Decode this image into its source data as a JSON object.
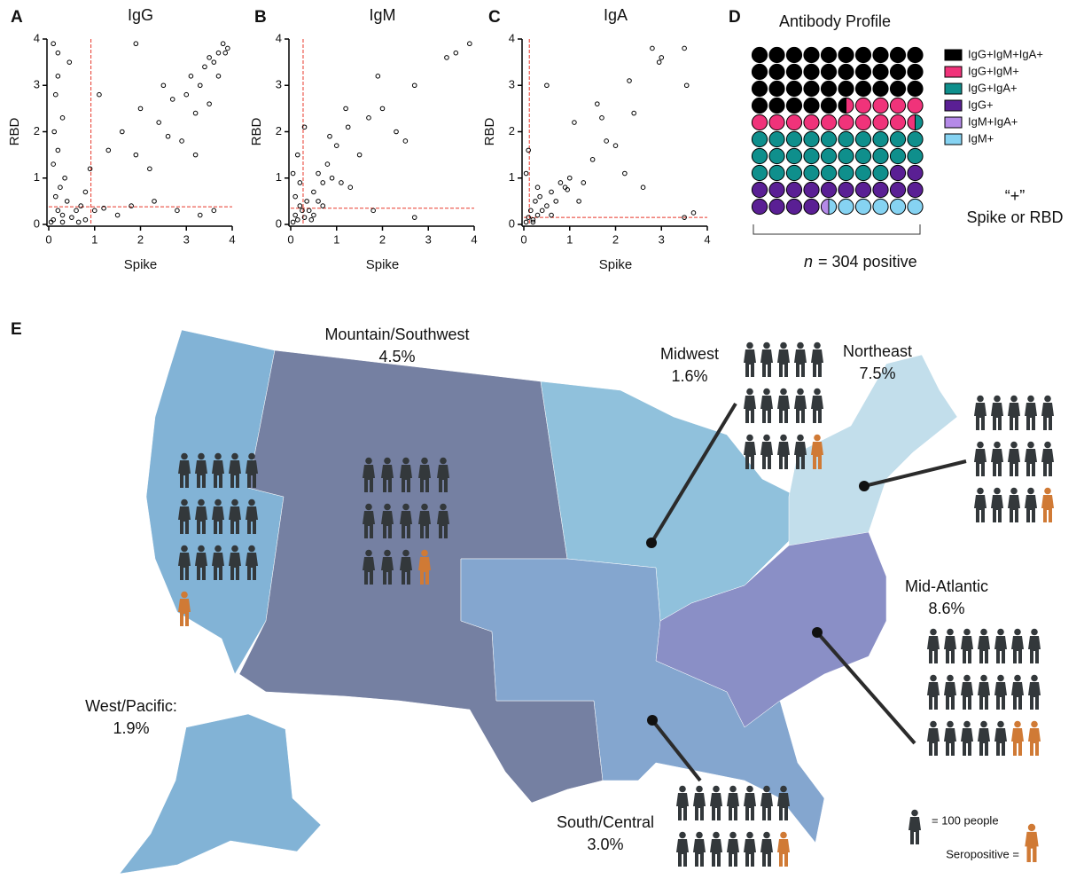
{
  "chart_data": [
    {
      "type": "scatter",
      "panel_label": "A",
      "title": "IgG",
      "x_label": "Spike",
      "y_label": "RBD",
      "x": [
        0.1,
        0.2,
        0.3,
        0.4,
        0.5,
        0.15,
        0.25,
        0.6,
        0.7,
        0.35,
        0.1,
        0.2,
        0.12,
        0.3,
        0.15,
        0.2,
        0.1,
        0.2,
        0.45,
        0.8,
        0.9,
        1.0,
        1.2,
        1.5,
        1.8,
        2.3,
        2.8,
        3.3,
        3.6,
        1.1,
        1.3,
        1.6,
        1.9,
        2.0,
        2.2,
        2.4,
        2.5,
        2.7,
        2.9,
        3.0,
        3.1,
        3.2,
        3.3,
        3.4,
        3.5,
        3.6,
        3.7,
        3.8,
        3.9,
        3.85,
        3.7,
        3.5,
        3.2,
        2.6,
        1.9,
        0.65,
        0.05,
        0.3,
        0.8
      ],
      "values": [
        0.1,
        0.3,
        0.2,
        0.5,
        0.15,
        0.6,
        0.8,
        0.3,
        0.4,
        1.0,
        1.3,
        1.6,
        2.0,
        2.3,
        2.8,
        3.2,
        3.9,
        3.7,
        3.5,
        0.7,
        1.2,
        0.3,
        0.35,
        0.2,
        0.4,
        0.5,
        0.3,
        0.2,
        0.3,
        2.8,
        1.6,
        2.0,
        1.5,
        2.5,
        1.2,
        2.2,
        3.0,
        2.7,
        1.8,
        2.8,
        3.2,
        2.4,
        3.0,
        3.4,
        3.6,
        3.5,
        3.7,
        3.9,
        3.8,
        3.7,
        3.2,
        2.6,
        1.5,
        1.9,
        3.9,
        0.05,
        0.05,
        0.05,
        0.1
      ],
      "xlim": [
        0,
        4
      ],
      "ylim": [
        0,
        4
      ],
      "xticks": [
        0,
        1,
        2,
        3,
        4
      ],
      "yticks": [
        0,
        1,
        2,
        3,
        4
      ],
      "thresholds": {
        "x": 0.92,
        "y": 0.38
      },
      "color": "#000000",
      "threshold_color": "#e8382a"
    },
    {
      "type": "scatter",
      "panel_label": "B",
      "title": "IgM",
      "x_label": "Spike",
      "y_label": "RBD",
      "x": [
        0.05,
        0.1,
        0.15,
        0.2,
        0.25,
        0.3,
        0.35,
        0.1,
        0.2,
        0.05,
        0.15,
        0.3,
        0.5,
        0.6,
        0.7,
        0.8,
        0.9,
        1.0,
        1.2,
        1.3,
        1.5,
        1.7,
        1.8,
        1.9,
        2.0,
        2.3,
        2.5,
        2.7,
        2.7,
        3.4,
        3.6,
        3.9,
        0.4,
        0.5,
        0.6,
        0.45,
        0.7,
        1.1,
        1.25,
        0.85
      ],
      "values": [
        0.05,
        0.2,
        0.1,
        0.4,
        0.3,
        0.15,
        0.5,
        0.6,
        0.9,
        1.1,
        1.5,
        2.1,
        0.7,
        1.1,
        0.9,
        1.3,
        1.0,
        1.7,
        2.5,
        0.8,
        1.5,
        2.3,
        0.3,
        3.2,
        2.5,
        2.0,
        1.8,
        3.0,
        0.15,
        3.6,
        3.7,
        3.9,
        0.3,
        0.2,
        0.5,
        0.1,
        0.4,
        0.9,
        2.1,
        1.9
      ],
      "xlim": [
        0,
        4
      ],
      "ylim": [
        0,
        4
      ],
      "xticks": [
        0,
        1,
        2,
        3,
        4
      ],
      "yticks": [
        0,
        1,
        2,
        3,
        4
      ],
      "thresholds": {
        "x": 0.27,
        "y": 0.35
      },
      "color": "#000000",
      "threshold_color": "#e8382a"
    },
    {
      "type": "scatter",
      "panel_label": "C",
      "title": "IgA",
      "x_label": "Spike",
      "y_label": "RBD",
      "x": [
        0.05,
        0.1,
        0.15,
        0.2,
        0.25,
        0.3,
        0.35,
        0.4,
        0.5,
        0.6,
        0.7,
        0.8,
        0.9,
        1.0,
        0.05,
        0.1,
        0.5,
        1.1,
        1.3,
        1.5,
        1.7,
        1.8,
        2.0,
        2.2,
        2.3,
        2.4,
        2.6,
        2.8,
        2.95,
        3.0,
        3.5,
        3.55,
        3.7,
        3.5,
        1.2,
        1.6,
        0.95,
        0.3,
        0.2,
        0.6
      ],
      "values": [
        0.05,
        0.15,
        0.3,
        0.1,
        0.5,
        0.2,
        0.6,
        0.3,
        0.4,
        0.7,
        0.5,
        0.9,
        0.8,
        1.0,
        1.1,
        1.6,
        3.0,
        2.2,
        0.9,
        1.4,
        2.3,
        1.8,
        1.7,
        1.1,
        3.1,
        2.4,
        0.8,
        3.8,
        3.5,
        3.6,
        3.8,
        3.0,
        0.25,
        0.15,
        0.5,
        2.6,
        0.75,
        0.8,
        0.05,
        0.2
      ],
      "xlim": [
        0,
        4
      ],
      "ylim": [
        0,
        4
      ],
      "xticks": [
        0,
        1,
        2,
        3,
        4
      ],
      "yticks": [
        0,
        1,
        2,
        3,
        4
      ],
      "thresholds": {
        "x": 0.12,
        "y": 0.15
      },
      "color": "#000000",
      "threshold_color": "#e8382a"
    },
    {
      "type": "waffle",
      "panel_label": "D",
      "title": "Antibody Profile",
      "series": [
        {
          "name": "IgG+IgM+IgA+",
          "color": "#000000",
          "values": [
            35.5
          ]
        },
        {
          "name": "IgG+IgM+",
          "color": "#f0337a",
          "values": [
            14
          ]
        },
        {
          "name": "IgG+IgA+",
          "color": "#0f8f8c",
          "values": [
            28.5
          ]
        },
        {
          "name": "IgG+",
          "color": "#5a1f94",
          "values": [
            16
          ]
        },
        {
          "name": "IgM+IgA+",
          "color": "#b58ae8",
          "values": [
            0.5
          ]
        },
        {
          "name": "IgM+",
          "color": "#86d3f2",
          "values": [
            5.5
          ]
        }
      ],
      "note_symbol": "“+”",
      "note": "Spike or RBD",
      "n_symbol": "n",
      "n_text": "= 304 positive"
    }
  ],
  "map": {
    "panel_label": "E",
    "regions": [
      {
        "name": "West/Pacific:",
        "value": 1.9,
        "value_label": "1.9%",
        "color": "#82b3d6",
        "people_icons": 16,
        "seropositive_icons": 1
      },
      {
        "name": "Mountain/Southwest",
        "value": 4.5,
        "value_label": "4.5%",
        "color": "#7580a2",
        "people_icons": 14,
        "seropositive_icons": 1
      },
      {
        "name": "Midwest",
        "value": 1.6,
        "value_label": "1.6%",
        "color": "#90c1dc",
        "people_icons": 15,
        "seropositive_icons": 1
      },
      {
        "name": "Northeast",
        "value": 7.5,
        "value_label": "7.5%",
        "color": "#c2deeb",
        "people_icons": 15,
        "seropositive_icons": 1
      },
      {
        "name": "Mid-Atlantic",
        "value": 8.6,
        "value_label": "8.6%",
        "color": "#8a8fc6",
        "people_icons": 21,
        "seropositive_icons": 2
      },
      {
        "name": "South/Central",
        "value": 3.0,
        "value_label": "3.0%",
        "color": "#84a6cf",
        "people_icons": 14,
        "seropositive_icons": 1
      }
    ],
    "icon_color": "#33383b",
    "seropositive_color": "#d07a35",
    "legend_unit": "= 100 people",
    "legend_seropositive": "Seropositive ="
  }
}
